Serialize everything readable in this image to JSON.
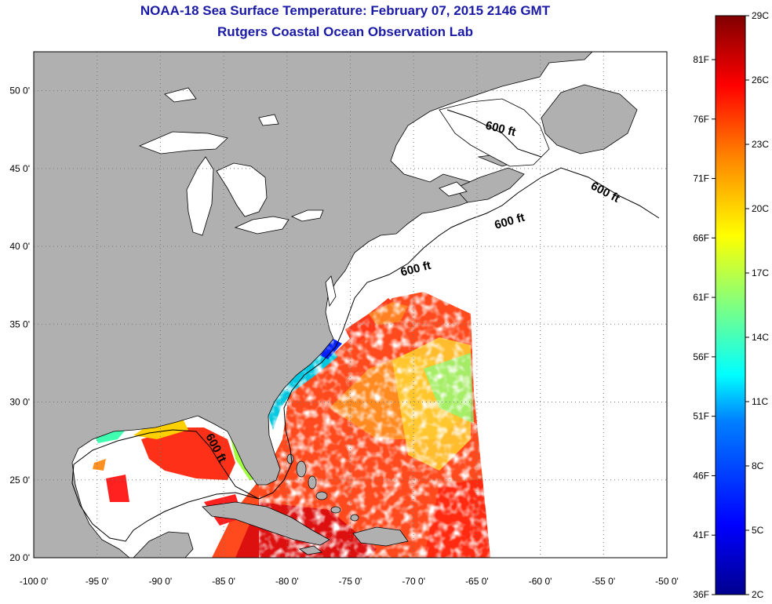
{
  "title": "NOAA-18 Sea Surface Temperature:  February 07, 2015 2146 GMT",
  "subtitle": "Rutgers Coastal Ocean Observation Lab",
  "lon_ticks": [
    "-100 0'",
    "-95 0'",
    "-90 0'",
    "-85 0'",
    "-80 0'",
    "-75 0'",
    "-70 0'",
    "-65 0'",
    "-60 0'",
    "-55 0'",
    "-50 0'"
  ],
  "lon_values": [
    -100,
    -95,
    -90,
    -85,
    -80,
    -75,
    -70,
    -65,
    -60,
    -55,
    -50
  ],
  "lat_ticks": [
    "20 0'",
    "25 0'",
    "30 0'",
    "35 0'",
    "40 0'",
    "45 0'",
    "50 0'"
  ],
  "lat_values": [
    20,
    25,
    30,
    35,
    40,
    45,
    50
  ],
  "map_extent": {
    "lon": [
      -100,
      -50
    ],
    "lat": [
      20,
      52.5
    ]
  },
  "contour_labels": [
    "600 ft",
    "600 ft",
    "600 ft",
    "600 ft",
    "600 ft"
  ],
  "colorbar": {
    "celsius": [
      "29C",
      "26C",
      "23C",
      "20C",
      "17C",
      "14C",
      "11C",
      "8C",
      "5C",
      "2C"
    ],
    "fahrenheit": [
      "81F",
      "76F",
      "71F",
      "66F",
      "61F",
      "56F",
      "51F",
      "46F",
      "41F",
      "36F"
    ],
    "colors": [
      "#00008f",
      "#0000ff",
      "#0080ff",
      "#00ffff",
      "#80ff80",
      "#ffff00",
      "#ff8000",
      "#ff0000",
      "#800000"
    ]
  },
  "colors": {
    "land": "#b0b0b0",
    "title": "#1a1aa6"
  }
}
